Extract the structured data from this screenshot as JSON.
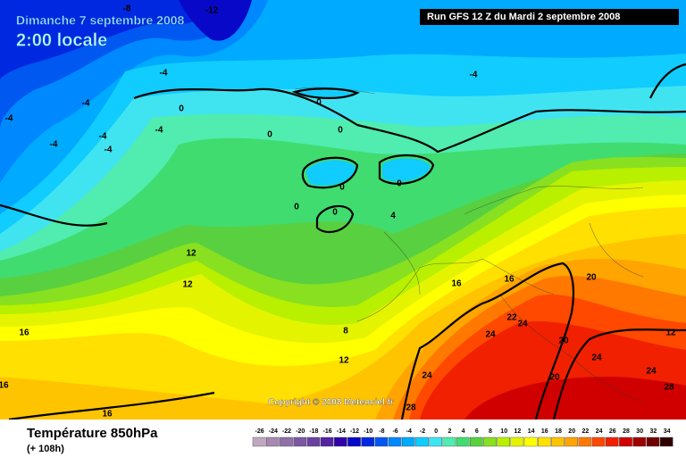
{
  "header": {
    "date": "Dimanche 7 septembre 2008",
    "time": "2:00 locale",
    "run": "Run GFS 12 Z du Mardi 2 septembre 2008"
  },
  "copyright": "Copyright © 2008 Meteociel.fr",
  "footer": {
    "title": "Température 850hPa",
    "lead": "(+ 108h)"
  },
  "legend": {
    "labels": [
      -26,
      -24,
      -22,
      -20,
      -18,
      -16,
      -14,
      -12,
      -10,
      -8,
      -6,
      -4,
      -2,
      0,
      2,
      4,
      6,
      8,
      10,
      12,
      14,
      16,
      18,
      20,
      22,
      24,
      26,
      28,
      30,
      32,
      34
    ],
    "colors": [
      "#c0a8c0",
      "#a888b0",
      "#9070a8",
      "#7c58a4",
      "#6a40a0",
      "#5424a4",
      "#3000a8",
      "#0808c8",
      "#0028e0",
      "#0058f0",
      "#0088ff",
      "#00aaff",
      "#10ccff",
      "#40e4f0",
      "#50ecb0",
      "#40dc70",
      "#58d040",
      "#88e020",
      "#b8f000",
      "#e4f400",
      "#ffff00",
      "#ffe000",
      "#ffc400",
      "#ffa400",
      "#ff7800",
      "#ff4800",
      "#f02000",
      "#d00000",
      "#a00000",
      "#700000",
      "#300000"
    ]
  },
  "contour_labels": [
    -12,
    -8,
    -4,
    -4,
    -4,
    -4,
    -4,
    -4,
    -4,
    -4,
    0,
    0,
    0,
    0,
    0,
    0,
    0,
    0,
    4,
    8,
    12,
    12,
    12,
    12,
    16,
    16,
    16,
    16,
    16,
    20,
    20,
    20,
    22,
    24,
    24,
    24,
    24,
    24,
    28,
    28
  ]
}
